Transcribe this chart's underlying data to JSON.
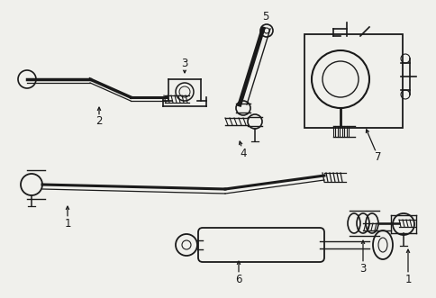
{
  "background_color": "#f0f0ec",
  "line_color": "#1a1a1a",
  "fig_width": 4.85,
  "fig_height": 3.31,
  "dpi": 100
}
